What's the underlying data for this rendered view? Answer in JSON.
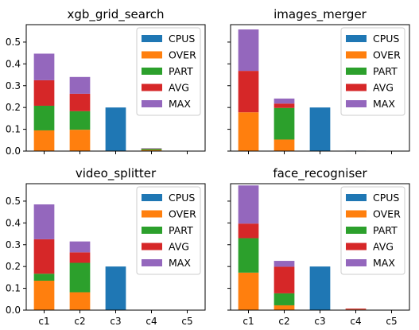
{
  "chart_data": [
    {
      "type": "bar",
      "title": "xgb_grid_search",
      "categories": [
        "c1",
        "c2",
        "c3",
        "c4",
        "c5"
      ],
      "ylim": [
        0,
        0.58
      ],
      "yticks": [
        0.0,
        0.1,
        0.2,
        0.3,
        0.4,
        0.5
      ],
      "legend_position": "top-right",
      "series": [
        {
          "name": "CPUS",
          "color": "#1f77b4",
          "values": [
            0,
            0,
            0.2,
            0,
            0
          ]
        },
        {
          "name": "OVER",
          "color": "#ff7f0e",
          "values": [
            0.095,
            0.098,
            0,
            0.005,
            0
          ]
        },
        {
          "name": "PART",
          "color": "#2ca02c",
          "values": [
            0.113,
            0.085,
            0,
            0.006,
            0
          ]
        },
        {
          "name": "AVG",
          "color": "#d62728",
          "values": [
            0.117,
            0.08,
            0,
            0.001,
            0
          ]
        },
        {
          "name": "MAX",
          "color": "#9467bd",
          "values": [
            0.122,
            0.077,
            0,
            0.001,
            0
          ]
        }
      ]
    },
    {
      "type": "bar",
      "title": "images_merger",
      "categories": [
        "c1",
        "c2",
        "c3",
        "c4",
        "c5"
      ],
      "ylim": [
        0,
        0.58
      ],
      "yticks": [
        0.0,
        0.1,
        0.2,
        0.3,
        0.4,
        0.5
      ],
      "legend_position": "top-right",
      "series": [
        {
          "name": "CPUS",
          "color": "#1f77b4",
          "values": [
            0,
            0,
            0.2,
            0.002,
            0
          ]
        },
        {
          "name": "OVER",
          "color": "#ff7f0e",
          "values": [
            0.178,
            0.053,
            0,
            0,
            0
          ]
        },
        {
          "name": "PART",
          "color": "#2ca02c",
          "values": [
            0,
            0.145,
            0,
            0,
            0
          ]
        },
        {
          "name": "AVG",
          "color": "#d62728",
          "values": [
            0.19,
            0.02,
            0,
            0,
            0
          ]
        },
        {
          "name": "MAX",
          "color": "#9467bd",
          "values": [
            0.19,
            0.023,
            0,
            0,
            0
          ]
        }
      ]
    },
    {
      "type": "bar",
      "title": "video_splitter",
      "categories": [
        "c1",
        "c2",
        "c3",
        "c4",
        "c5"
      ],
      "ylim": [
        0,
        0.58
      ],
      "yticks": [
        0.0,
        0.1,
        0.2,
        0.3,
        0.4,
        0.5
      ],
      "legend_position": "top-right",
      "series": [
        {
          "name": "CPUS",
          "color": "#1f77b4",
          "values": [
            0,
            0,
            0.2,
            0,
            0
          ]
        },
        {
          "name": "OVER",
          "color": "#ff7f0e",
          "values": [
            0.135,
            0.082,
            0,
            0,
            0
          ]
        },
        {
          "name": "PART",
          "color": "#2ca02c",
          "values": [
            0.032,
            0.135,
            0,
            0,
            0
          ]
        },
        {
          "name": "AVG",
          "color": "#d62728",
          "values": [
            0.158,
            0.048,
            0,
            0,
            0
          ]
        },
        {
          "name": "MAX",
          "color": "#9467bd",
          "values": [
            0.16,
            0.05,
            0,
            0,
            0
          ]
        }
      ]
    },
    {
      "type": "bar",
      "title": "face_recogniser",
      "categories": [
        "c1",
        "c2",
        "c3",
        "c4",
        "c5"
      ],
      "ylim": [
        0,
        0.58
      ],
      "yticks": [
        0.0,
        0.1,
        0.2,
        0.3,
        0.4,
        0.5
      ],
      "legend_position": "top-right",
      "series": [
        {
          "name": "CPUS",
          "color": "#1f77b4",
          "values": [
            0,
            0,
            0.2,
            0,
            0
          ]
        },
        {
          "name": "OVER",
          "color": "#ff7f0e",
          "values": [
            0.172,
            0.022,
            0,
            0.003,
            0
          ]
        },
        {
          "name": "PART",
          "color": "#2ca02c",
          "values": [
            0.158,
            0.055,
            0,
            0,
            0
          ]
        },
        {
          "name": "AVG",
          "color": "#d62728",
          "values": [
            0.067,
            0.122,
            0,
            0.004,
            0
          ]
        },
        {
          "name": "MAX",
          "color": "#9467bd",
          "values": [
            0.175,
            0.027,
            0,
            0,
            0
          ]
        }
      ]
    }
  ]
}
